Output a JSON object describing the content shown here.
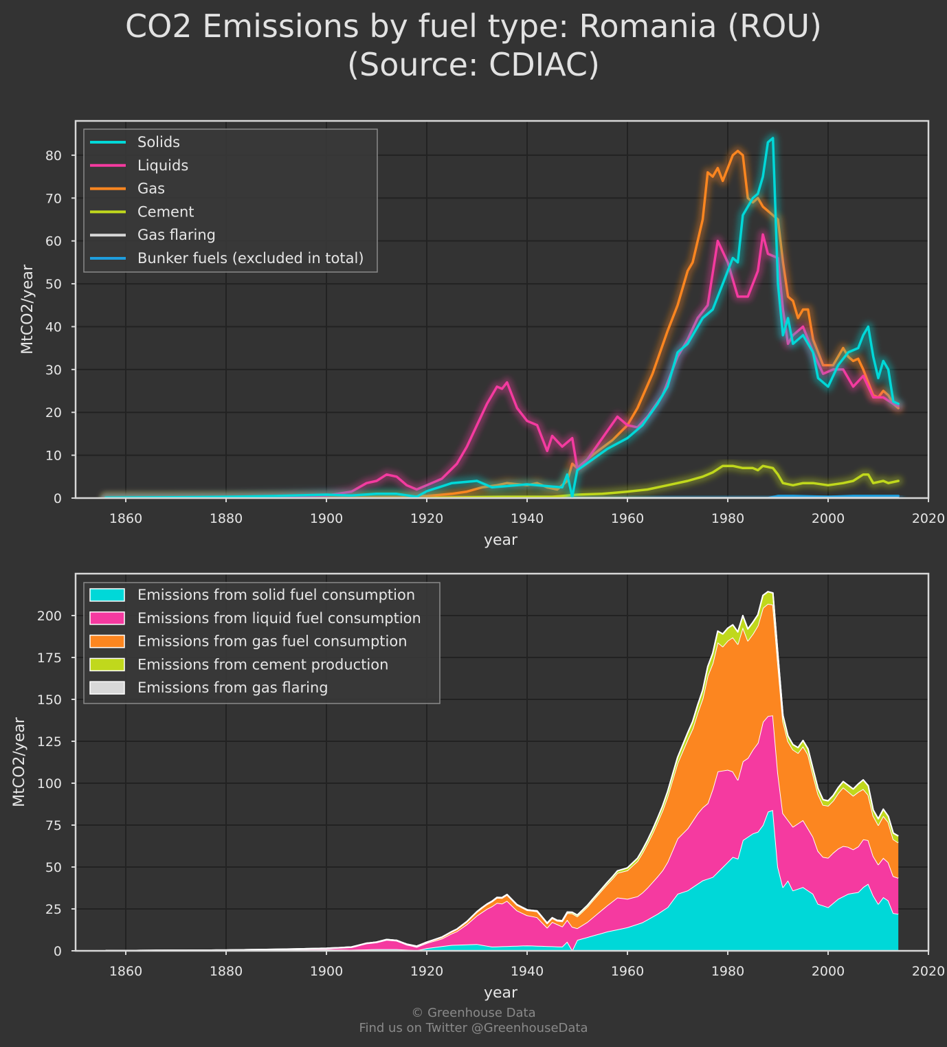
{
  "title": {
    "line1": "CO2 Emissions by fuel type: Romania (ROU)",
    "line2": "(Source: CDIAC)"
  },
  "footer": {
    "line1": "© Greenhouse Data",
    "line2": "Find us on Twitter @GreenhouseData"
  },
  "colors": {
    "solids": "#00d8d8",
    "liquids": "#f53aa0",
    "gas": "#fc8620",
    "cement": "#c0d81c",
    "flaring": "#d8d8d8",
    "bunker": "#1e9ede",
    "background": "#333333",
    "grid": "#222222",
    "frame": "#d8d8d8"
  },
  "chart_data": [
    {
      "type": "line",
      "xlabel": "year",
      "ylabel": "MtCO2/year",
      "xlim": [
        1850,
        2020
      ],
      "ylim": [
        0,
        88
      ],
      "xticks": [
        1860,
        1880,
        1900,
        1920,
        1940,
        1960,
        1980,
        2000,
        2020
      ],
      "yticks": [
        0,
        10,
        20,
        30,
        40,
        50,
        60,
        70,
        80
      ],
      "grid": true,
      "legend_position": "top-left",
      "legend": [
        "Solids",
        "Liquids",
        "Gas",
        "Cement",
        "Gas flaring",
        "Bunker fuels (excluded in total)"
      ],
      "series": [
        {
          "name": "Solids",
          "key": "solids",
          "points": [
            [
              1856,
              0.1
            ],
            [
              1870,
              0.2
            ],
            [
              1880,
              0.3
            ],
            [
              1890,
              0.5
            ],
            [
              1900,
              0.8
            ],
            [
              1905,
              0.6
            ],
            [
              1910,
              1.0
            ],
            [
              1914,
              1.0
            ],
            [
              1918,
              0.3
            ],
            [
              1920,
              1.6
            ],
            [
              1925,
              3.5
            ],
            [
              1930,
              4.0
            ],
            [
              1933,
              2.5
            ],
            [
              1936,
              2.8
            ],
            [
              1940,
              3.2
            ],
            [
              1945,
              2.7
            ],
            [
              1947,
              2.5
            ],
            [
              1948,
              5.5
            ],
            [
              1949,
              0.3
            ],
            [
              1950,
              6.5
            ],
            [
              1953,
              9.0
            ],
            [
              1956,
              11.5
            ],
            [
              1960,
              14.0
            ],
            [
              1963,
              17.0
            ],
            [
              1966,
              22.0
            ],
            [
              1968,
              26.0
            ],
            [
              1970,
              34.0
            ],
            [
              1972,
              36.0
            ],
            [
              1975,
              42.0
            ],
            [
              1977,
              44.0
            ],
            [
              1979,
              50.0
            ],
            [
              1981,
              56.0
            ],
            [
              1982,
              55.0
            ],
            [
              1983,
              66.0
            ],
            [
              1985,
              70.0
            ],
            [
              1986,
              71.0
            ],
            [
              1987,
              75.0
            ],
            [
              1988,
              83.0
            ],
            [
              1989,
              84.0
            ],
            [
              1990,
              50.0
            ],
            [
              1991,
              38.0
            ],
            [
              1992,
              42.0
            ],
            [
              1993,
              36.0
            ],
            [
              1995,
              38.0
            ],
            [
              1997,
              34.0
            ],
            [
              1998,
              28.0
            ],
            [
              2000,
              26.0
            ],
            [
              2002,
              31.0
            ],
            [
              2004,
              34.0
            ],
            [
              2006,
              35.0
            ],
            [
              2007,
              38.0
            ],
            [
              2008,
              40.0
            ],
            [
              2009,
              33.0
            ],
            [
              2010,
              28.0
            ],
            [
              2011,
              32.0
            ],
            [
              2012,
              30.0
            ],
            [
              2013,
              22.5
            ],
            [
              2014,
              22.0
            ]
          ]
        },
        {
          "name": "Liquids",
          "key": "liquids",
          "points": [
            [
              1856,
              0.05
            ],
            [
              1880,
              0.1
            ],
            [
              1890,
              0.3
            ],
            [
              1900,
              0.6
            ],
            [
              1905,
              1.5
            ],
            [
              1908,
              3.5
            ],
            [
              1910,
              4.0
            ],
            [
              1912,
              5.5
            ],
            [
              1914,
              5.0
            ],
            [
              1916,
              3.0
            ],
            [
              1918,
              2.0
            ],
            [
              1920,
              3.0
            ],
            [
              1923,
              4.5
            ],
            [
              1926,
              8.0
            ],
            [
              1928,
              12.0
            ],
            [
              1930,
              17.0
            ],
            [
              1932,
              22.0
            ],
            [
              1934,
              26.0
            ],
            [
              1935,
              25.5
            ],
            [
              1936,
              27.0
            ],
            [
              1938,
              21.0
            ],
            [
              1940,
              18.0
            ],
            [
              1942,
              17.0
            ],
            [
              1944,
              11.0
            ],
            [
              1945,
              14.5
            ],
            [
              1947,
              12.0
            ],
            [
              1949,
              14.0
            ],
            [
              1950,
              7.0
            ],
            [
              1952,
              9.0
            ],
            [
              1955,
              14.0
            ],
            [
              1958,
              19.0
            ],
            [
              1960,
              17.0
            ],
            [
              1962,
              16.5
            ],
            [
              1964,
              19.0
            ],
            [
              1967,
              24.0
            ],
            [
              1970,
              33.0
            ],
            [
              1972,
              37.0
            ],
            [
              1974,
              42.0
            ],
            [
              1976,
              45.0
            ],
            [
              1978,
              60.0
            ],
            [
              1980,
              55.0
            ],
            [
              1982,
              47.0
            ],
            [
              1984,
              47.0
            ],
            [
              1986,
              53.0
            ],
            [
              1987,
              61.5
            ],
            [
              1988,
              57.0
            ],
            [
              1990,
              56.0
            ],
            [
              1991,
              44.0
            ],
            [
              1992,
              36.0
            ],
            [
              1993,
              38.0
            ],
            [
              1995,
              40.0
            ],
            [
              1997,
              34.0
            ],
            [
              1999,
              29.0
            ],
            [
              2001,
              30.0
            ],
            [
              2003,
              30.0
            ],
            [
              2004,
              28.0
            ],
            [
              2005,
              26.0
            ],
            [
              2007,
              28.5
            ],
            [
              2009,
              23.5
            ],
            [
              2011,
              23.5
            ],
            [
              2013,
              22.0
            ],
            [
              2014,
              21.5
            ]
          ]
        },
        {
          "name": "Gas",
          "key": "gas",
          "points": [
            [
              1856,
              0
            ],
            [
              1900,
              0.05
            ],
            [
              1915,
              0.2
            ],
            [
              1920,
              0.5
            ],
            [
              1925,
              1.0
            ],
            [
              1928,
              1.5
            ],
            [
              1931,
              2.5
            ],
            [
              1934,
              3.0
            ],
            [
              1936,
              3.5
            ],
            [
              1940,
              3.0
            ],
            [
              1942,
              3.5
            ],
            [
              1944,
              2.5
            ],
            [
              1946,
              2.0
            ],
            [
              1948,
              4.0
            ],
            [
              1949,
              8.0
            ],
            [
              1950,
              7.0
            ],
            [
              1953,
              10.0
            ],
            [
              1957,
              13.5
            ],
            [
              1960,
              17.0
            ],
            [
              1962,
              21.0
            ],
            [
              1965,
              29.0
            ],
            [
              1968,
              39.0
            ],
            [
              1970,
              45.0
            ],
            [
              1972,
              53.0
            ],
            [
              1973,
              55.0
            ],
            [
              1975,
              65.0
            ],
            [
              1976,
              76.0
            ],
            [
              1977,
              75.0
            ],
            [
              1978,
              77.0
            ],
            [
              1979,
              74.0
            ],
            [
              1980,
              77.0
            ],
            [
              1981,
              80.0
            ],
            [
              1982,
              81.0
            ],
            [
              1983,
              80.0
            ],
            [
              1984,
              70.0
            ],
            [
              1985,
              69.0
            ],
            [
              1986,
              70.0
            ],
            [
              1987,
              68.0
            ],
            [
              1988,
              67.0
            ],
            [
              1989,
              66.0
            ],
            [
              1990,
              65.0
            ],
            [
              1991,
              55.0
            ],
            [
              1992,
              47.0
            ],
            [
              1993,
              46.0
            ],
            [
              1994,
              42.0
            ],
            [
              1995,
              44.0
            ],
            [
              1996,
              44.0
            ],
            [
              1997,
              37.0
            ],
            [
              1999,
              31.0
            ],
            [
              2000,
              31.0
            ],
            [
              2001,
              31.0
            ],
            [
              2002,
              33.0
            ],
            [
              2003,
              35.0
            ],
            [
              2004,
              33.0
            ],
            [
              2005,
              32.0
            ],
            [
              2006,
              32.5
            ],
            [
              2007,
              30.0
            ],
            [
              2008,
              27.0
            ],
            [
              2009,
              24.0
            ],
            [
              2010,
              23.5
            ],
            [
              2011,
              25.0
            ],
            [
              2012,
              24.0
            ],
            [
              2013,
              22.0
            ],
            [
              2014,
              21.0
            ]
          ]
        },
        {
          "name": "Cement",
          "key": "cement",
          "points": [
            [
              1856,
              0
            ],
            [
              1920,
              0.1
            ],
            [
              1935,
              0.3
            ],
            [
              1945,
              0.3
            ],
            [
              1950,
              0.8
            ],
            [
              1955,
              1.0
            ],
            [
              1960,
              1.5
            ],
            [
              1964,
              2.0
            ],
            [
              1968,
              3.0
            ],
            [
              1972,
              4.0
            ],
            [
              1975,
              5.0
            ],
            [
              1977,
              6.0
            ],
            [
              1979,
              7.5
            ],
            [
              1981,
              7.5
            ],
            [
              1983,
              7.0
            ],
            [
              1985,
              7.0
            ],
            [
              1986,
              6.5
            ],
            [
              1987,
              7.5
            ],
            [
              1989,
              7.0
            ],
            [
              1990,
              5.5
            ],
            [
              1991,
              3.5
            ],
            [
              1993,
              3.0
            ],
            [
              1995,
              3.5
            ],
            [
              1997,
              3.5
            ],
            [
              2000,
              3.0
            ],
            [
              2003,
              3.5
            ],
            [
              2005,
              4.0
            ],
            [
              2007,
              5.5
            ],
            [
              2008,
              5.5
            ],
            [
              2009,
              3.5
            ],
            [
              2011,
              4.0
            ],
            [
              2012,
              3.5
            ],
            [
              2014,
              4.0
            ]
          ]
        },
        {
          "name": "Gas flaring",
          "key": "flaring",
          "points": [
            [
              1856,
              0
            ],
            [
              1960,
              0
            ],
            [
              1975,
              0
            ],
            [
              2000,
              0
            ],
            [
              2014,
              0
            ]
          ]
        },
        {
          "name": "Bunker fuels (excluded in total)",
          "key": "bunker",
          "points": [
            [
              1856,
              0
            ],
            [
              1988,
              0
            ],
            [
              1990,
              0.5
            ],
            [
              1993,
              0.5
            ],
            [
              2000,
              0.3
            ],
            [
              2005,
              0.5
            ],
            [
              2014,
              0.5
            ]
          ]
        }
      ]
    },
    {
      "type": "area",
      "stacked": true,
      "xlabel": "year",
      "ylabel": "MtCO2/year",
      "xlim": [
        1850,
        2020
      ],
      "ylim": [
        0,
        225
      ],
      "xticks": [
        1860,
        1880,
        1900,
        1920,
        1940,
        1960,
        1980,
        2000,
        2020
      ],
      "yticks": [
        0,
        25,
        50,
        75,
        100,
        125,
        150,
        175,
        200
      ],
      "grid": true,
      "legend_position": "top-left",
      "legend": [
        "Emissions from solid fuel consumption",
        "Emissions from liquid fuel consumption",
        "Emissions from gas fuel consumption",
        "Emissions from cement production",
        "Emissions from gas flaring"
      ],
      "layers": [
        {
          "name": "Emissions from solid fuel consumption",
          "key": "solids"
        },
        {
          "name": "Emissions from liquid fuel consumption",
          "key": "liquids"
        },
        {
          "name": "Emissions from gas fuel consumption",
          "key": "gas"
        },
        {
          "name": "Emissions from cement production",
          "key": "cement"
        },
        {
          "name": "Emissions from gas flaring",
          "key": "flaring"
        }
      ]
    }
  ]
}
